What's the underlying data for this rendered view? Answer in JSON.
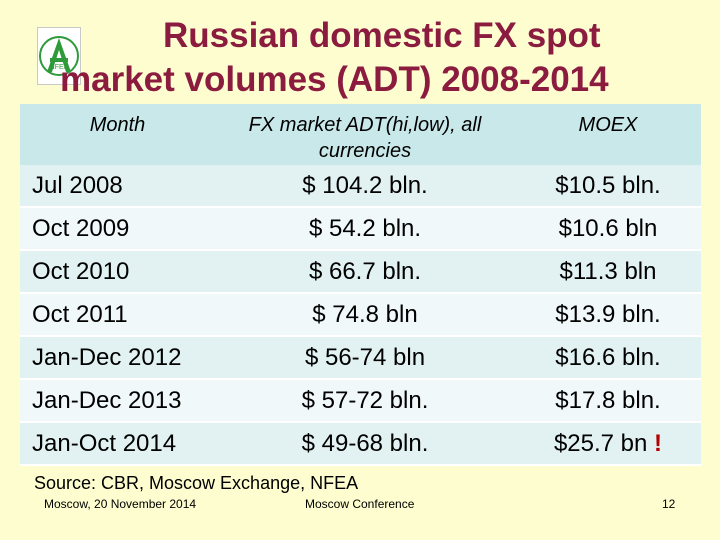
{
  "logo": {
    "text": "NFEA"
  },
  "title": {
    "line1": "Russian domestic FX spot",
    "line2": "market volumes (ADT) 2008-2014"
  },
  "table": {
    "headers": [
      "Month",
      "FX market ADT(hi,low), all currencies",
      "MOEX"
    ],
    "rows": [
      {
        "month": "Jul  2008",
        "fx": "$ 104.2 bln.",
        "moex": "$10.5 bln."
      },
      {
        "month": "Oct 2009",
        "fx": "$ 54.2 bln.",
        "moex": "$10.6 bln"
      },
      {
        "month": "Oct 2010",
        "fx": "$ 66.7 bln.",
        "moex": "$11.3 bln"
      },
      {
        "month": "Oct 2011",
        "fx": "$ 74.8 bln",
        "moex": "$13.9 bln."
      },
      {
        "month": "Jan-Dec 2012",
        "fx": "$ 56-74 bln",
        "moex": "$16.6 bln."
      },
      {
        "month": "Jan-Dec 2013",
        "fx": "$ 57-72 bln.",
        "moex": "$17.8 bln."
      },
      {
        "month": "Jan-Oct 2014",
        "fx": "$ 49-68 bln.",
        "moex": "$25.7 bn"
      }
    ],
    "last_row_emphasis": "!"
  },
  "source": "Source: CBR, Moscow Exchange, NFEA",
  "footer": {
    "left": "Moscow, 20 November 2014",
    "center": "Moscow Conference",
    "page": "12"
  },
  "colors": {
    "background": "#fdfdcf",
    "title": "#8b1c3f",
    "header_fill": "#c9e8ea",
    "logo_green": "#2e9a3a",
    "emphasis": "#b00000"
  }
}
